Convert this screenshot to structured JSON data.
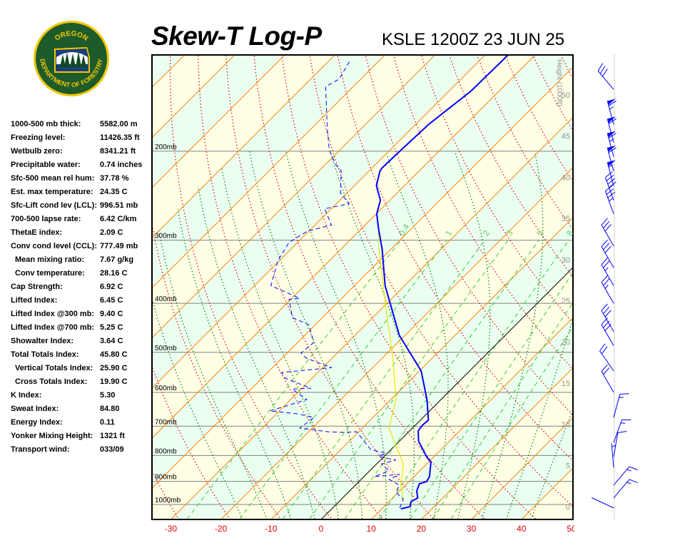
{
  "header": {
    "title": "Skew-T Log-P",
    "station": "KSLE 1200Z 23 JUN 25"
  },
  "logo": {
    "top_text": "OREGON",
    "bottom_text": "DEPARTMENT OF FORESTRY"
  },
  "stats": [
    {
      "label": "1000-500 mb thick:",
      "value": "5582.00 m"
    },
    {
      "label": "Freezing level:",
      "value": "11426.35 ft"
    },
    {
      "label": "Wetbulb zero:",
      "value": "8341.21 ft"
    },
    {
      "label": "Precipitable water:",
      "value": "0.74 inches"
    },
    {
      "label": "Sfc-500 mean rel hum:",
      "value": "37.78 %"
    },
    {
      "label": "Est. max temperature:",
      "value": "24.35 C"
    },
    {
      "label": "Sfc-Lift cond lev (LCL):",
      "value": "996.51 mb"
    },
    {
      "label": "700-500 lapse rate:",
      "value": "6.42 C/km"
    },
    {
      "label": "ThetaE index:",
      "value": "2.09 C"
    },
    {
      "label": "Conv cond level (CCL):",
      "value": "777.49 mb"
    },
    {
      "label": "Mean mixing ratio:",
      "value": "7.67 g/kg",
      "indent": true
    },
    {
      "label": "Conv temperature:",
      "value": "28.16 C",
      "indent": true
    },
    {
      "label": "Cap Strength:",
      "value": "6.92 C"
    },
    {
      "label": "Lifted Index:",
      "value": "6.45 C"
    },
    {
      "label": "Lifted Index @300 mb:",
      "value": "9.40 C"
    },
    {
      "label": "Lifted Index @700 mb:",
      "value": "5.25 C"
    },
    {
      "label": "Showalter Index:",
      "value": "3.64 C"
    },
    {
      "label": "Total Totals Index:",
      "value": "45.80 C"
    },
    {
      "label": "Vertical Totals Index:",
      "value": "25.90 C",
      "indent": true
    },
    {
      "label": "Cross Totals Index:",
      "value": "19.90 C",
      "indent": true
    },
    {
      "label": "K Index:",
      "value": "5.30"
    },
    {
      "label": "Sweat Index:",
      "value": "84.80"
    },
    {
      "label": "Energy Index:",
      "value": "0.11"
    },
    {
      "label": "Yonker Mixing Height:",
      "value": "1321 ft"
    },
    {
      "label": "Transport wind:",
      "value": "033/09"
    }
  ],
  "chart_data": {
    "type": "skew-t",
    "x_ticks": [
      "-30",
      "-20",
      "-10",
      "0",
      "10",
      "20",
      "30",
      "40",
      "50"
    ],
    "x_tick_values": [
      -30,
      -20,
      -10,
      0,
      10,
      20,
      30,
      40,
      50
    ],
    "pressure_levels": [
      {
        "p": 200,
        "label": "200mb"
      },
      {
        "p": 300,
        "label": "300mb"
      },
      {
        "p": 400,
        "label": "400mb"
      },
      {
        "p": 500,
        "label": "500mb"
      },
      {
        "p": 600,
        "label": "600mb"
      },
      {
        "p": 700,
        "label": "700mb"
      },
      {
        "p": 800,
        "label": "800mb"
      },
      {
        "p": 900,
        "label": "900mb"
      },
      {
        "p": 1000,
        "label": "1000mb"
      }
    ],
    "pressure_range": [
      1070,
      129
    ],
    "height_axis": {
      "label": "Height (1000ft)",
      "ticks": [
        "0",
        "5",
        "10",
        "15",
        "20",
        "25",
        "30",
        "35",
        "40",
        "45",
        "50"
      ]
    },
    "mixing_ratio_labels": [
      "0.4",
      "1",
      "2",
      "3",
      "5",
      "8"
    ],
    "mixing_ratio_values": [
      0.4,
      1,
      2,
      3,
      5,
      8,
      12,
      16,
      20
    ],
    "colors": {
      "isotherm": "#ff8000",
      "zero_isotherm": "#000000",
      "dry_adiabat": "#e00000",
      "moist_adiabat": "#008000",
      "mixing_ratio": "#33cc33",
      "pressure_line": "#808080",
      "temperature": "#0000ff",
      "dewpoint": "#0000ff",
      "parcel": "#e8e800",
      "band_a": "#ffffe6",
      "band_b": "#ebfff0",
      "tick_label": "#e00000",
      "wind": "#0000ff"
    },
    "temperature": [
      [
        1020,
        13.8
      ],
      [
        1010,
        15.2
      ],
      [
        987,
        14.4
      ],
      [
        971,
        15.0
      ],
      [
        940,
        13.4
      ],
      [
        910,
        12.5
      ],
      [
        901,
        13.5
      ],
      [
        881,
        13.1
      ],
      [
        825,
        10.5
      ],
      [
        804,
        8.5
      ],
      [
        749,
        3.8
      ],
      [
        715,
        1.7
      ],
      [
        697,
        1.4
      ],
      [
        681,
        1.6
      ],
      [
        620,
        -2.8
      ],
      [
        544,
        -9.7
      ],
      [
        463,
        -21.1
      ],
      [
        369,
        -33.9
      ],
      [
        313,
        -41.7
      ],
      [
        284,
        -46.7
      ],
      [
        266,
        -49.9
      ],
      [
        250,
        -51.9
      ],
      [
        234,
        -55.6
      ],
      [
        219,
        -57.8
      ],
      [
        216,
        -58.0
      ],
      [
        200,
        -57.8
      ],
      [
        177,
        -57.4
      ],
      [
        152,
        -55.6
      ],
      [
        129,
        -55.4
      ]
    ],
    "dewpoint": [
      [
        1016,
        13.4
      ],
      [
        977,
        12.4
      ],
      [
        946,
        9.5
      ],
      [
        916,
        8.8
      ],
      [
        892,
        5.6
      ],
      [
        872,
        6.7
      ],
      [
        881,
        2.1
      ],
      [
        858,
        3.8
      ],
      [
        831,
        1.0
      ],
      [
        817,
        3.1
      ],
      [
        804,
        -1.1
      ],
      [
        791,
        -0.4
      ],
      [
        779,
        -4.0
      ],
      [
        718,
        -10.4
      ],
      [
        720,
        -13.1
      ],
      [
        718,
        -16.1
      ],
      [
        706,
        -22.5
      ],
      [
        673,
        -21.8
      ],
      [
        662,
        -25.6
      ],
      [
        653,
        -31.9
      ],
      [
        620,
        -26.8
      ],
      [
        591,
        -31.8
      ],
      [
        589,
        -28.2
      ],
      [
        563,
        -35.3
      ],
      [
        548,
        -37.2
      ],
      [
        536,
        -28.2
      ],
      [
        514,
        -35.0
      ],
      [
        502,
        -37.2
      ],
      [
        478,
        -36.8
      ],
      [
        441,
        -41.3
      ],
      [
        427,
        -46.0
      ],
      [
        393,
        -50.3
      ],
      [
        391,
        -48.4
      ],
      [
        369,
        -56.7
      ],
      [
        329,
        -60.3
      ],
      [
        303,
        -61.7
      ],
      [
        288,
        -60.3
      ],
      [
        280,
        -56.7
      ],
      [
        260,
        -61.3
      ],
      [
        254,
        -57.4
      ],
      [
        242,
        -61.3
      ],
      [
        219,
        -65.5
      ],
      [
        212,
        -68.1
      ],
      [
        199,
        -72.1
      ],
      [
        180,
        -76.9
      ],
      [
        149,
        -85.5
      ],
      [
        144,
        -84.3
      ],
      [
        132,
        -85.9
      ]
    ],
    "parcel": [
      [
        977,
        12.4
      ],
      [
        916,
        9.1
      ],
      [
        831,
        5.3
      ],
      [
        706,
        -4.7
      ],
      [
        620,
        -9.0
      ],
      [
        510,
        -18.2
      ],
      [
        406,
        -29.6
      ],
      [
        303,
        -43.9
      ],
      [
        284,
        -46.7
      ]
    ],
    "wind_barbs": [
      {
        "p": 151,
        "dir": 320,
        "kt": 30
      },
      {
        "p": 177,
        "dir": 345,
        "kt": 65
      },
      {
        "p": 192,
        "dir": 345,
        "kt": 60
      },
      {
        "p": 205,
        "dir": 345,
        "kt": 65
      },
      {
        "p": 219,
        "dir": 345,
        "kt": 60
      },
      {
        "p": 234,
        "dir": 345,
        "kt": 55
      },
      {
        "p": 250,
        "dir": 340,
        "kt": 40
      },
      {
        "p": 266,
        "dir": 340,
        "kt": 35
      },
      {
        "p": 308,
        "dir": 330,
        "kt": 30
      },
      {
        "p": 340,
        "dir": 330,
        "kt": 30
      },
      {
        "p": 369,
        "dir": 330,
        "kt": 25
      },
      {
        "p": 400,
        "dir": 330,
        "kt": 25
      },
      {
        "p": 455,
        "dir": 330,
        "kt": 30
      },
      {
        "p": 485,
        "dir": 330,
        "kt": 30
      },
      {
        "p": 544,
        "dir": 325,
        "kt": 20
      },
      {
        "p": 600,
        "dir": 330,
        "kt": 20
      },
      {
        "p": 673,
        "dir": 15,
        "kt": 15
      },
      {
        "p": 754,
        "dir": 20,
        "kt": 15
      },
      {
        "p": 804,
        "dir": 10,
        "kt": 10
      },
      {
        "p": 845,
        "dir": 355,
        "kt": 5
      },
      {
        "p": 916,
        "dir": 40,
        "kt": 15
      },
      {
        "p": 971,
        "dir": 40,
        "kt": 15
      },
      {
        "p": 1016,
        "dir": 295,
        "kt": 0
      }
    ]
  }
}
